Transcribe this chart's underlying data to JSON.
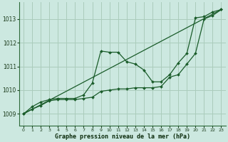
{
  "background_color": "#cce8e0",
  "grid_color": "#aaccbb",
  "line_color": "#1a5c2a",
  "ylim": [
    1008.5,
    1013.7
  ],
  "xlim": [
    -0.5,
    23.5
  ],
  "yticks": [
    1009,
    1010,
    1011,
    1012,
    1013
  ],
  "xticks": [
    0,
    1,
    2,
    3,
    4,
    5,
    6,
    7,
    8,
    9,
    10,
    11,
    12,
    13,
    14,
    15,
    16,
    17,
    18,
    19,
    20,
    21,
    22,
    23
  ],
  "xlabel": "Graphe pression niveau de la mer (hPa)",
  "series": [
    {
      "x": [
        0,
        1,
        2,
        3,
        4,
        5,
        6,
        7,
        8,
        9,
        10,
        11,
        12,
        13,
        14,
        15,
        16,
        17,
        18,
        19,
        20,
        21,
        22,
        23
      ],
      "y": [
        1009.0,
        1009.3,
        1009.5,
        1009.6,
        1009.65,
        1009.65,
        1009.65,
        1009.8,
        1010.3,
        1011.65,
        1011.6,
        1011.6,
        1011.2,
        1011.1,
        1010.85,
        1010.35,
        1010.35,
        1010.65,
        1011.15,
        1011.55,
        1013.05,
        1013.1,
        1013.3,
        1013.4
      ]
    },
    {
      "x": [
        0,
        1,
        2,
        3,
        4,
        5,
        6,
        7,
        8,
        9,
        10,
        11,
        12,
        13,
        14,
        15,
        16,
        17,
        18,
        19,
        20,
        21,
        22,
        23
      ],
      "y": [
        1009.0,
        1009.2,
        1009.35,
        1009.55,
        1009.6,
        1009.6,
        1009.6,
        1009.65,
        1009.7,
        1009.95,
        1010.0,
        1010.05,
        1010.05,
        1010.1,
        1010.1,
        1010.1,
        1010.15,
        1010.55,
        1010.65,
        1011.1,
        1011.55,
        1013.0,
        1013.15,
        1013.4
      ]
    },
    {
      "x": [
        0,
        23
      ],
      "y": [
        1009.0,
        1013.4
      ]
    }
  ]
}
